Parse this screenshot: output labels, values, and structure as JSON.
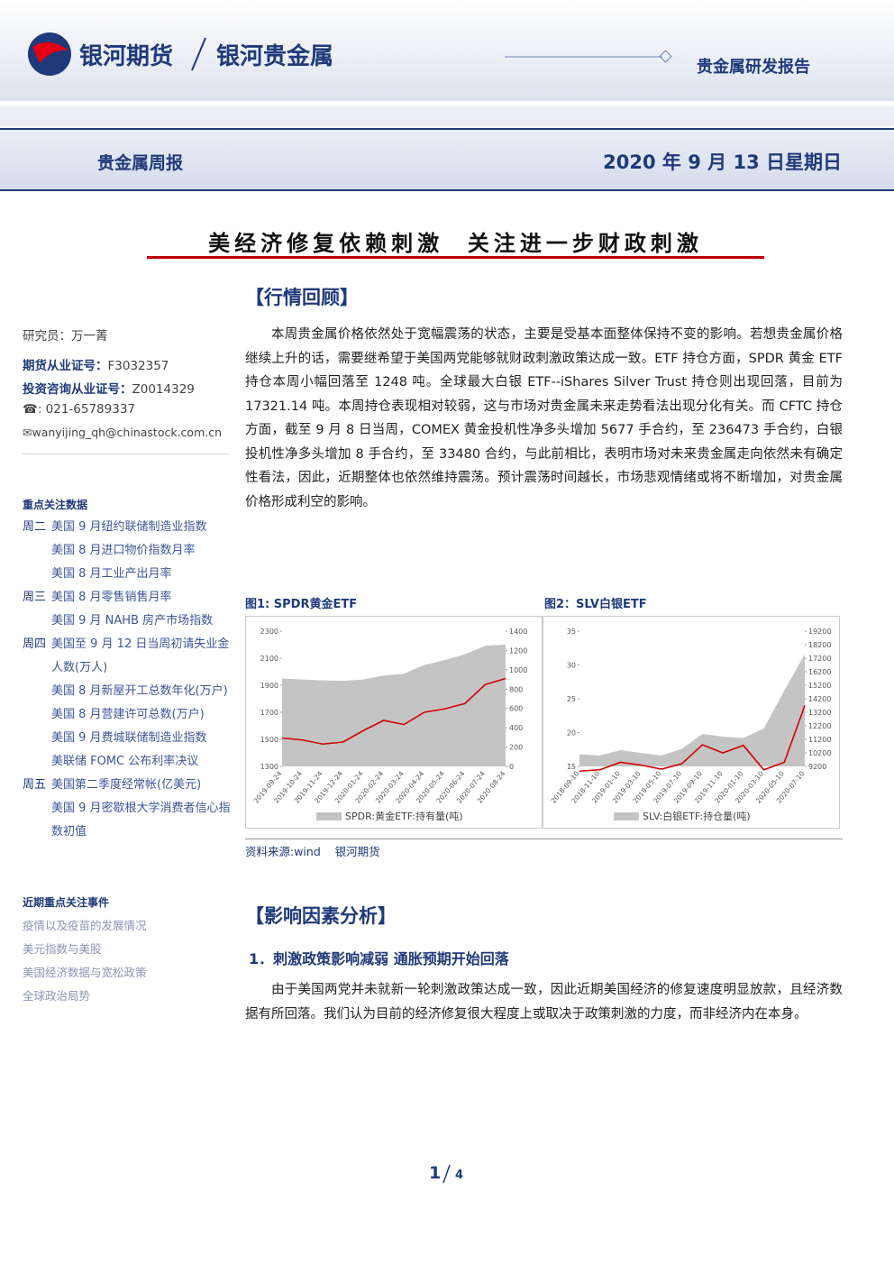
{
  "header": {
    "brand": "银河期货",
    "sub_brand": "银河贵金属",
    "report_type": "贵金属研发报告"
  },
  "banner": {
    "title": "贵金属周报",
    "date": "2020 年 9 月 13 日星期日"
  },
  "headline": "美经济修复依赖刺激  关注进一步财政刺激",
  "sidebar": {
    "researcher": "研究员：万一菁",
    "credentials": [
      {
        "label": "期货从业证号：",
        "value": "F3032357"
      },
      {
        "label": "投资咨询从业证号：",
        "value": "Z0014329"
      }
    ],
    "phone": "☎: 021-65789337",
    "email": "✉wanyijing_qh@chinastock.com.cn",
    "focus_title": "重点关注数据",
    "focus_groups": [
      {
        "day": "周二",
        "items": [
          "美国 9 月纽约联储制造业指数",
          "美国 8 月进口物价指数月率",
          "美国 8 月工业产出月率"
        ]
      },
      {
        "day": "周三",
        "items": [
          "美国 8 月零售销售月率",
          "美国 9 月 NAHB 房产市场指数"
        ]
      },
      {
        "day": "周四",
        "items": [
          "美国至 9 月 12 日当周初请失业金人数(万人)",
          "美国 8 月新屋开工总数年化(万户)",
          "美国 8 月营建许可总数(万户)",
          "美国 9 月费城联储制造业指数",
          "美联储 FOMC 公布利率决议"
        ]
      },
      {
        "day": "周五",
        "items": [
          "美国第二季度经常帐(亿美元)",
          "美国 9 月密歇根大学消费者信心指数初值"
        ]
      }
    ],
    "events_title": "近期重点关注事件",
    "events": [
      "疫情以及疫苗的发展情况",
      "美元指数与美股",
      "美国经济数据与宽松政策",
      "全球政治局势"
    ]
  },
  "section1": {
    "heading": "【行情回顾】",
    "paragraph": "本周贵金属价格依然处于宽幅震荡的状态，主要是受基本面整体保持不变的影响。若想贵金属价格继续上升的话，需要继希望于美国两党能够就财政刺激政策达成一致。ETF 持仓方面，SPDR 黄金 ETF 持仓本周小幅回落至 1248 吨。全球最大白银 ETF--iShares Silver Trust 持仓则出现回落，目前为 17321.14 吨。本周持仓表现相对较弱，这与市场对贵金属未来走势看法出现分化有关。而 CFTC 持仓方面，截至 9 月 8 日当周，COMEX 黄金投机性净多头增加 5677 手合约，至 236473 手合约，白银投机性净多头增加 8 手合约，至 33480 合约，与此前相比，表明市场对未来贵金属走向依然未有确定性看法，因此，近期整体也依然维持震荡。预计震荡时间越长，市场悲观情绪或将不断增加，对贵金属价格形成利空的影响。"
  },
  "chart_data": [
    {
      "type": "line",
      "title": "图1: SPDR黄金ETF",
      "categories": [
        "2019-09-24",
        "2019-10-24",
        "2019-11-24",
        "2019-12-24",
        "2020-01-24",
        "2020-02-24",
        "2020-03-24",
        "2020-04-24",
        "2020-05-24",
        "2020-06-24",
        "2020-07-24",
        "2020-08-24"
      ],
      "ylim": [
        1300,
        2300
      ],
      "yticks": [
        1300,
        1500,
        1700,
        1900,
        2100,
        2300
      ],
      "y2lim": [
        0,
        1400
      ],
      "y2ticks": [
        0,
        200,
        400,
        600,
        800,
        1000,
        1200,
        1400
      ],
      "series": [
        {
          "name": "SPDR:黄金ETF:持有量(吨)",
          "color": "#c4c4c4",
          "style": "area",
          "axis": "y2",
          "values": [
            910,
            900,
            890,
            885,
            900,
            940,
            960,
            1050,
            1100,
            1160,
            1250,
            1260
          ]
        },
        {
          "color": "#d40000",
          "style": "line",
          "axis": "y",
          "values": [
            1510,
            1495,
            1465,
            1480,
            1565,
            1640,
            1610,
            1700,
            1725,
            1765,
            1905,
            1950
          ]
        }
      ]
    },
    {
      "type": "line",
      "title": "图2：SLV白银ETF",
      "categories": [
        "2018-09-10",
        "2018-11-10",
        "2019-01-10",
        "2019-03-10",
        "2019-05-10",
        "2019-07-10",
        "2019-09-10",
        "2019-11-10",
        "2020-01-10",
        "2020-03-10",
        "2020-05-10",
        "2020-07-10"
      ],
      "ylim": [
        15,
        35
      ],
      "yticks": [
        15,
        20,
        25,
        30,
        35
      ],
      "y2lim": [
        9200,
        19200
      ],
      "y2ticks": [
        9200,
        10200,
        11200,
        12200,
        13200,
        14200,
        15200,
        16200,
        17200,
        18200,
        19200
      ],
      "series": [
        {
          "name": "SLV:白银ETF:持仓量(吨)",
          "color": "#c4c4c4",
          "style": "area",
          "axis": "y2",
          "values": [
            10100,
            10000,
            10400,
            10200,
            10000,
            10500,
            11600,
            11400,
            11300,
            12000,
            14800,
            17500
          ]
        },
        {
          "color": "#d40000",
          "style": "line",
          "axis": "y",
          "values": [
            14.3,
            14.5,
            15.6,
            15.2,
            14.6,
            15.4,
            18.2,
            17.0,
            18.1,
            14.5,
            15.6,
            24.0
          ]
        }
      ]
    }
  ],
  "source": "资料来源:wind    银河期货",
  "section2": {
    "heading": "【影响因素分析】",
    "subheading": "1．刺激政策影响减弱 通胀预期开始回落",
    "paragraph": "由于美国两党并未就新一轮刺激政策达成一致，因此近期美国经济的修复速度明显放款，且经济数据有所回落。我们认为目前的经济修复很大程度上或取决于政策刺激的力度，而非经济内在本身。"
  },
  "page_number": {
    "current": "1",
    "total": "4"
  }
}
